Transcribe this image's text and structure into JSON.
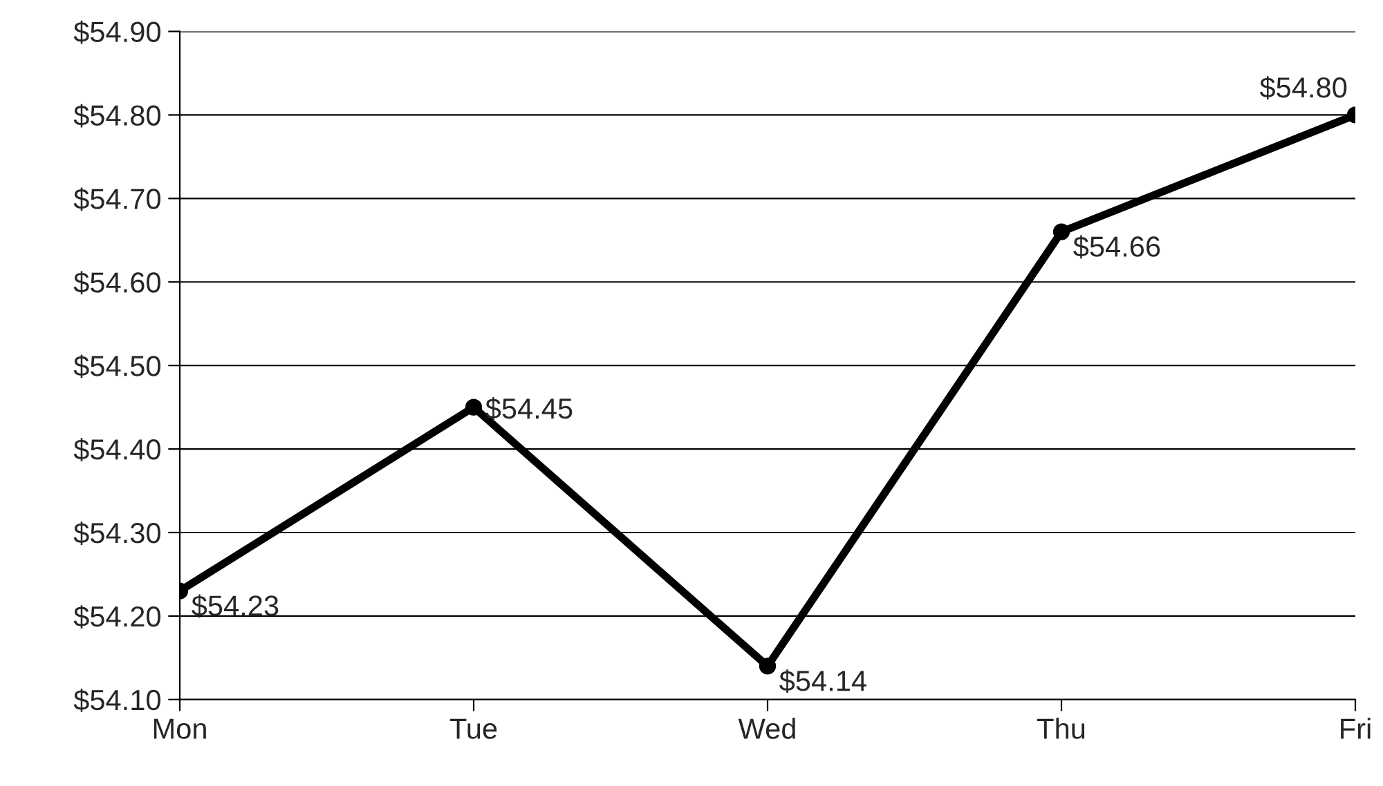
{
  "chart_data": {
    "type": "line",
    "categories": [
      "Mon",
      "Tue",
      "Wed",
      "Thu",
      "Fri"
    ],
    "series": [
      {
        "color": "#000000",
        "values": [
          54.23,
          54.45,
          54.14,
          54.66,
          54.8
        ],
        "value_labels": [
          "$54.23",
          "$54.45",
          "$54.14",
          "$54.66",
          "$54.80"
        ]
      }
    ],
    "ylim": [
      54.1,
      54.9
    ],
    "yticks": [
      {
        "value": 54.1,
        "label": "$54.10"
      },
      {
        "value": 54.2,
        "label": "$54.20"
      },
      {
        "value": 54.3,
        "label": "$54.30"
      },
      {
        "value": 54.4,
        "label": "$54.40"
      },
      {
        "value": 54.5,
        "label": "$54.50"
      },
      {
        "value": 54.6,
        "label": "$54.60"
      },
      {
        "value": 54.7,
        "label": "$54.70"
      },
      {
        "value": 54.8,
        "label": "$54.80"
      },
      {
        "value": 54.9,
        "label": "$54.90"
      }
    ],
    "grid": "y",
    "marker": "circle",
    "line_style": "solid",
    "legend": false
  }
}
